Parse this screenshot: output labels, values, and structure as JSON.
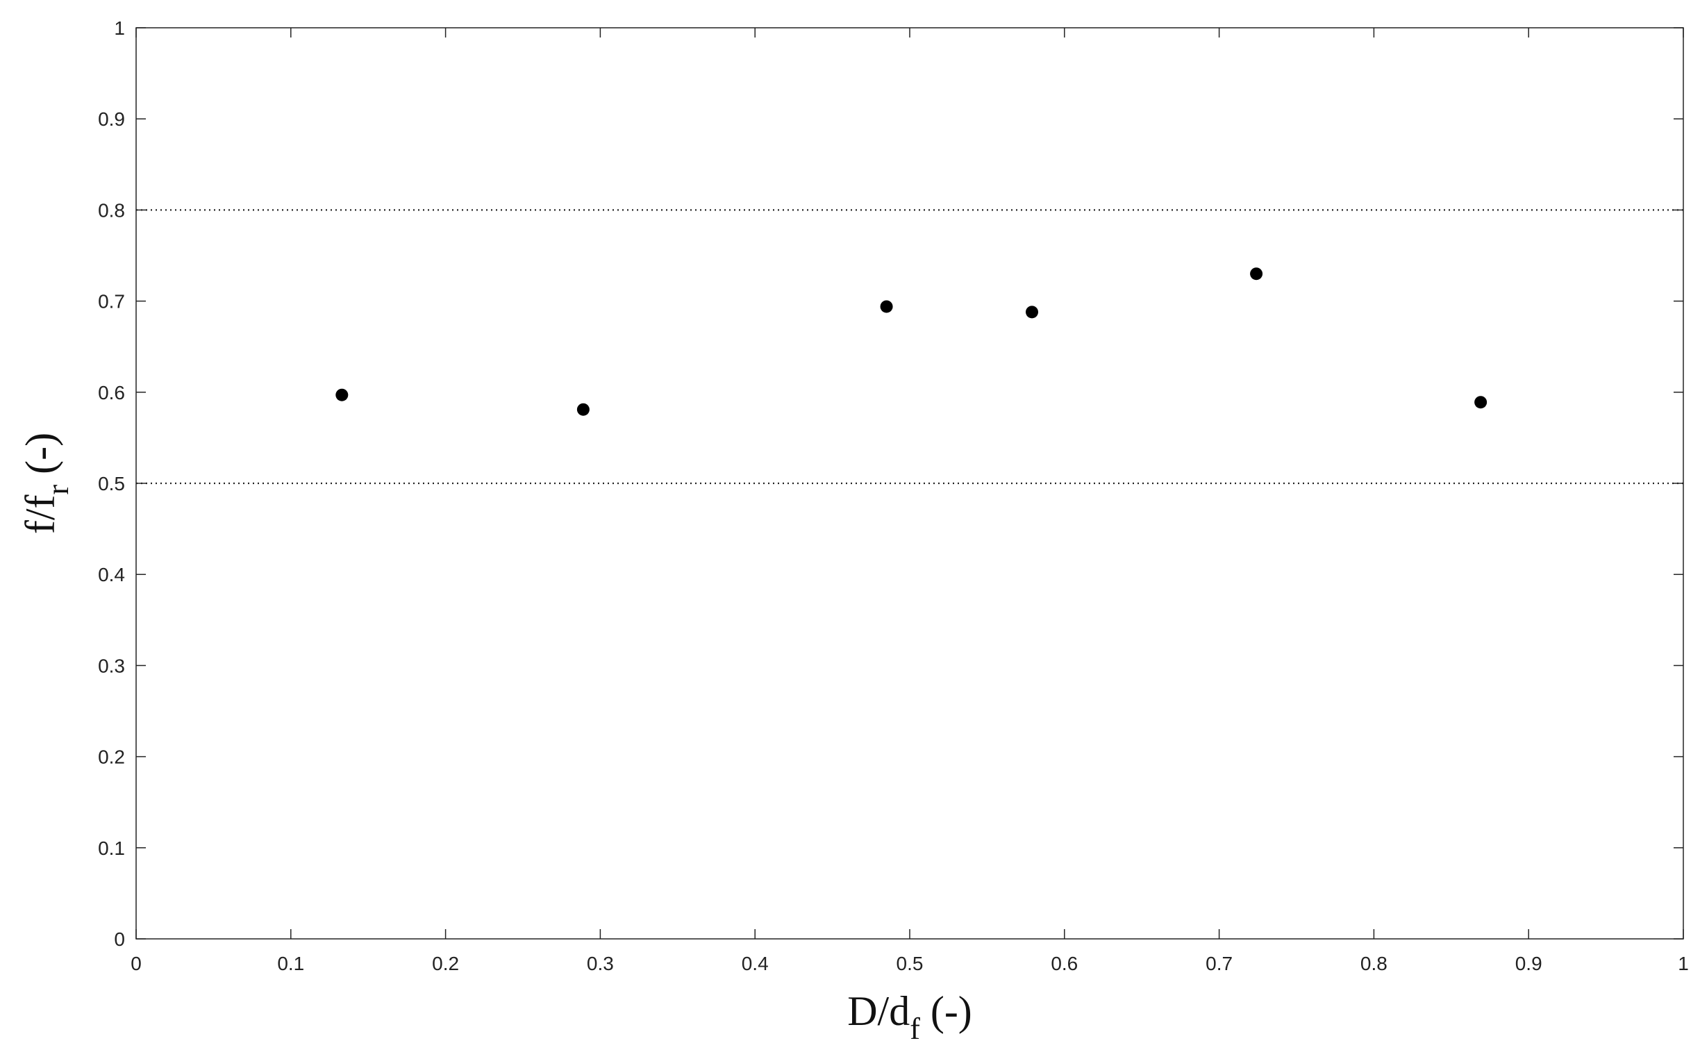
{
  "chart_data": {
    "type": "scatter",
    "title": "",
    "xlabel": {
      "main": "D/d",
      "sub": "f",
      "suffix": " (-)"
    },
    "ylabel": {
      "main": "f/f",
      "sub": "r",
      "suffix": " (-)"
    },
    "xlim": [
      0,
      1
    ],
    "ylim": [
      0,
      1
    ],
    "xticks": [
      0,
      0.1,
      0.2,
      0.3,
      0.4,
      0.5,
      0.6,
      0.7,
      0.8,
      0.9,
      1
    ],
    "yticks": [
      0,
      0.1,
      0.2,
      0.3,
      0.4,
      0.5,
      0.6,
      0.7,
      0.8,
      0.9,
      1
    ],
    "xtick_labels": [
      "0",
      "0.1",
      "0.2",
      "0.3",
      "0.4",
      "0.5",
      "0.6",
      "0.7",
      "0.8",
      "0.9",
      "1"
    ],
    "ytick_labels": [
      "0",
      "0.1",
      "0.2",
      "0.3",
      "0.4",
      "0.5",
      "0.6",
      "0.7",
      "0.8",
      "0.9",
      "1"
    ],
    "grid": false,
    "reference_lines": [
      {
        "axis": "y",
        "value": 0.8,
        "style": "dotted"
      },
      {
        "axis": "y",
        "value": 0.5,
        "style": "dotted"
      }
    ],
    "series": [
      {
        "color": "#000000",
        "marker": "filled-circle",
        "x": [
          0.133,
          0.289,
          0.485,
          0.579,
          0.724,
          0.869
        ],
        "y": [
          0.597,
          0.581,
          0.694,
          0.688,
          0.73,
          0.589
        ]
      }
    ]
  }
}
